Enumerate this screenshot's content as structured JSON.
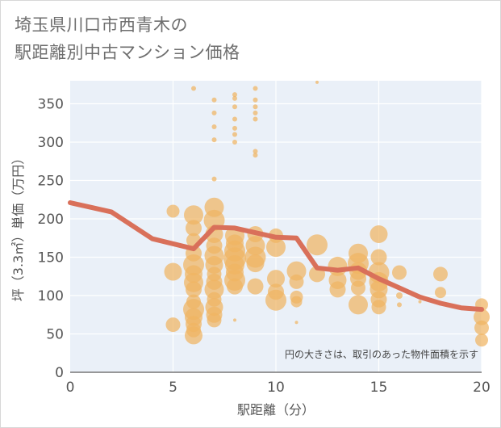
{
  "title_lines": [
    "埼玉県川口市西青木の",
    "駅距離別中古マンション価格"
  ],
  "chart_data": {
    "type": "scatter",
    "title": "埼玉県川口市西青木の 駅距離別中古マンション価格",
    "xlabel": "駅距離（分）",
    "ylabel": "坪（3.3㎡）単価（万円）",
    "xlim": [
      0,
      20
    ],
    "ylim": [
      0,
      380
    ],
    "xticks": [
      0,
      5,
      10,
      15,
      20
    ],
    "yticks": [
      0,
      50,
      100,
      150,
      200,
      250,
      300,
      350
    ],
    "grid": true,
    "annotation": "円の大きさは、取引のあった物件面積を示す",
    "colors": {
      "bubble": "#f0b463",
      "line": "#d9705a",
      "plot_bg": "#eaf0f8",
      "grid": "#ffffff"
    },
    "series": [
      {
        "type": "bubble",
        "points": [
          [
            5,
            210,
            8
          ],
          [
            5,
            131,
            11
          ],
          [
            5,
            62,
            9
          ],
          [
            6,
            370,
            3
          ],
          [
            6,
            205,
            12
          ],
          [
            6,
            188,
            10
          ],
          [
            6,
            172,
            9
          ],
          [
            6,
            155,
            10
          ],
          [
            6,
            140,
            13
          ],
          [
            6,
            128,
            11
          ],
          [
            6,
            117,
            12
          ],
          [
            6,
            108,
            10
          ],
          [
            6,
            92,
            9
          ],
          [
            6,
            82,
            13
          ],
          [
            6,
            72,
            11
          ],
          [
            6,
            63,
            10
          ],
          [
            6,
            55,
            9
          ],
          [
            6,
            48,
            11
          ],
          [
            7,
            355,
            3
          ],
          [
            7,
            338,
            3
          ],
          [
            7,
            320,
            3
          ],
          [
            7,
            303,
            3
          ],
          [
            7,
            252,
            3
          ],
          [
            7,
            215,
            12
          ],
          [
            7,
            198,
            13
          ],
          [
            7,
            180,
            11
          ],
          [
            7,
            165,
            10
          ],
          [
            7,
            152,
            12
          ],
          [
            7,
            140,
            11
          ],
          [
            7,
            128,
            9
          ],
          [
            7,
            118,
            10
          ],
          [
            7,
            108,
            12
          ],
          [
            7,
            95,
            9
          ],
          [
            7,
            85,
            11
          ],
          [
            7,
            75,
            10
          ],
          [
            7,
            68,
            9
          ],
          [
            8,
            362,
            3
          ],
          [
            8,
            357,
            3
          ],
          [
            8,
            346,
            3
          ],
          [
            8,
            330,
            3
          ],
          [
            8,
            318,
            3
          ],
          [
            8,
            310,
            3
          ],
          [
            8,
            300,
            3
          ],
          [
            8,
            178,
            12
          ],
          [
            8,
            168,
            11
          ],
          [
            8,
            158,
            13
          ],
          [
            8,
            148,
            14
          ],
          [
            8,
            140,
            12
          ],
          [
            8,
            130,
            11
          ],
          [
            8,
            120,
            13
          ],
          [
            8,
            112,
            10
          ],
          [
            8,
            68,
            2
          ],
          [
            9,
            370,
            3
          ],
          [
            9,
            355,
            3
          ],
          [
            9,
            346,
            3
          ],
          [
            9,
            338,
            3
          ],
          [
            9,
            330,
            3
          ],
          [
            9,
            288,
            3
          ],
          [
            9,
            283,
            3
          ],
          [
            9,
            180,
            10
          ],
          [
            9,
            165,
            12
          ],
          [
            9,
            150,
            13
          ],
          [
            9,
            142,
            11
          ],
          [
            9,
            112,
            10
          ],
          [
            10,
            178,
            9
          ],
          [
            10,
            163,
            12
          ],
          [
            10,
            122,
            11
          ],
          [
            10,
            105,
            10
          ],
          [
            10,
            94,
            13
          ],
          [
            11,
            132,
            12
          ],
          [
            11,
            118,
            9
          ],
          [
            11,
            98,
            8
          ],
          [
            11,
            92,
            7
          ],
          [
            11,
            65,
            2
          ],
          [
            12,
            378,
            2
          ],
          [
            12,
            166,
            13
          ],
          [
            12,
            128,
            10
          ],
          [
            13,
            138,
            12
          ],
          [
            13,
            120,
            11
          ],
          [
            13,
            108,
            10
          ],
          [
            14,
            155,
            12
          ],
          [
            14,
            142,
            13
          ],
          [
            14,
            132,
            11
          ],
          [
            14,
            122,
            10
          ],
          [
            14,
            110,
            9
          ],
          [
            14,
            88,
            12
          ],
          [
            15,
            180,
            11
          ],
          [
            15,
            150,
            10
          ],
          [
            15,
            130,
            13
          ],
          [
            15,
            118,
            12
          ],
          [
            15,
            108,
            11
          ],
          [
            15,
            95,
            10
          ],
          [
            15,
            85,
            9
          ],
          [
            16,
            130,
            9
          ],
          [
            16,
            100,
            4
          ],
          [
            16,
            88,
            3
          ],
          [
            17,
            92,
            2
          ],
          [
            18,
            128,
            9
          ],
          [
            18,
            104,
            7
          ],
          [
            18,
            90,
            3
          ],
          [
            20,
            88,
            8
          ],
          [
            20,
            72,
            10
          ],
          [
            20,
            58,
            9
          ],
          [
            20,
            42,
            8
          ]
        ]
      },
      {
        "type": "line",
        "x": [
          0,
          2,
          4,
          6,
          7,
          8,
          10,
          11,
          12,
          13,
          14,
          15,
          16,
          17,
          18,
          19,
          20
        ],
        "y": [
          221,
          209,
          174,
          161,
          189,
          188,
          176,
          175,
          136,
          133,
          136,
          122,
          110,
          98,
          90,
          84,
          82
        ]
      }
    ]
  }
}
